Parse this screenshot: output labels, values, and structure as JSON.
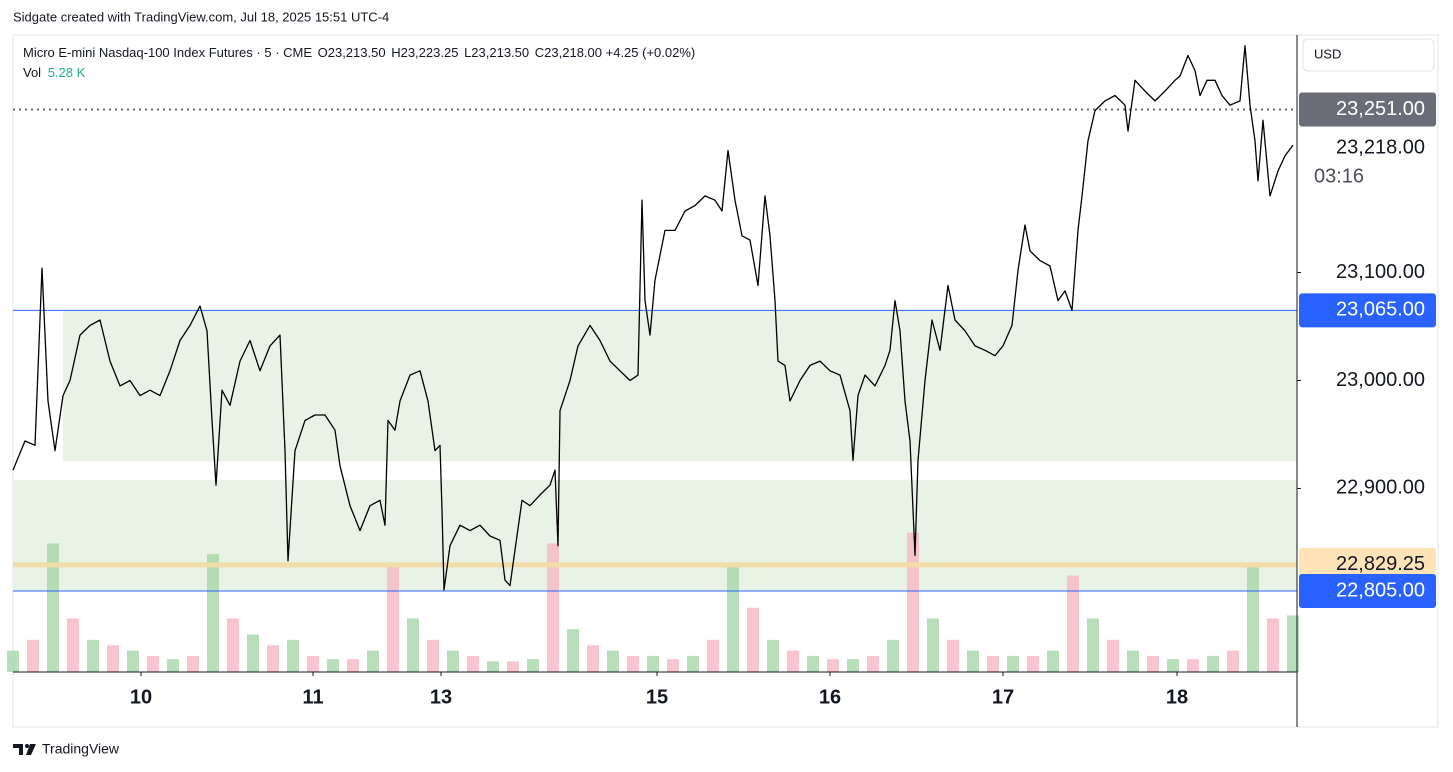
{
  "header": {
    "credit": "Sidgate created with TradingView.com, Jul 18, 2025 15:51 UTC-4"
  },
  "footer": {
    "brand": "TradingView"
  },
  "chart_data": {
    "type": "line",
    "currency": "USD",
    "ohlc": [
      {
        "key": "O",
        "value": "23,213.50"
      },
      {
        "key": "H",
        "value": "23,223.25"
      },
      {
        "key": "L",
        "value": "23,213.50"
      },
      {
        "key": "C",
        "value": "23,218.00"
      }
    ],
    "change": "+4.25 (+0.02%)",
    "xlim": [
      0,
      1284
    ],
    "ylim": [
      22730,
      23320
    ],
    "xticks": [
      {
        "value": 128,
        "label": "10"
      },
      {
        "value": 300,
        "label": "11"
      },
      {
        "value": 428,
        "label": "13"
      },
      {
        "value": 644,
        "label": "15"
      },
      {
        "value": 817,
        "label": "16"
      },
      {
        "value": 990,
        "label": "17"
      },
      {
        "value": 1164,
        "label": "18"
      }
    ],
    "yticks": [
      {
        "value": 22900,
        "label": "22,900.00"
      },
      {
        "value": 23000,
        "label": "23,000.00"
      },
      {
        "value": 23100,
        "label": "23,100.00"
      }
    ],
    "series": [
      {
        "name": "Micro E-mini Nasdaq-100 Index Futures · 5 · CME",
        "color": "#000000",
        "x": [
          0,
          12,
          22,
          29,
          35,
          42,
          50,
          57,
          67,
          77,
          87,
          97,
          107,
          117,
          127,
          137,
          147,
          157,
          167,
          177,
          187,
          194,
          199,
          203,
          209,
          217,
          227,
          237,
          247,
          257,
          267,
          272,
          275,
          282,
          292,
          302,
          312,
          322,
          327,
          337,
          347,
          357,
          367,
          372,
          375,
          382,
          387,
          397,
          407,
          415,
          422,
          427,
          429,
          431,
          437,
          447,
          457,
          467,
          477,
          487,
          492,
          497,
          502,
          509,
          517,
          527,
          537,
          542,
          545,
          547,
          557,
          565,
          577,
          587,
          597,
          607,
          617,
          625,
          629,
          632,
          637,
          642,
          652,
          662,
          672,
          682,
          692,
          702,
          709,
          715,
          722,
          729,
          737,
          745,
          752,
          757,
          762,
          765,
          772,
          777,
          787,
          797,
          807,
          817,
          827,
          837,
          840,
          845,
          852,
          862,
          872,
          877,
          882,
          887,
          892,
          897,
          902,
          905,
          912,
          919,
          927,
          935,
          942,
          952,
          962,
          972,
          982,
          990,
          999,
          1005,
          1012,
          1017,
          1027,
          1037,
          1045,
          1052,
          1059,
          1065,
          1069,
          1075,
          1082,
          1092,
          1102,
          1112,
          1115,
          1122,
          1132,
          1142,
          1152,
          1162,
          1167,
          1175,
          1182,
          1187,
          1194,
          1202,
          1209,
          1217,
          1227,
          1232,
          1237,
          1242,
          1245,
          1250,
          1257,
          1265,
          1272,
          1280
        ],
        "values": [
          22917,
          22944,
          22940,
          23104,
          22981,
          22935,
          22986,
          23000,
          23042,
          23051,
          23056,
          23018,
          22995,
          23000,
          22986,
          22991,
          22986,
          23009,
          23037,
          23051,
          23069,
          23046,
          22963,
          22903,
          22991,
          22977,
          23018,
          23037,
          23009,
          23032,
          23042,
          22935,
          22833,
          22935,
          22963,
          22968,
          22968,
          22954,
          22921,
          22884,
          22861,
          22884,
          22889,
          22866,
          22963,
          22954,
          22981,
          23005,
          23009,
          22981,
          22935,
          22940,
          22880,
          22806,
          22847,
          22866,
          22861,
          22866,
          22856,
          22852,
          22815,
          22810,
          22843,
          22889,
          22884,
          22894,
          22903,
          22917,
          22847,
          22972,
          23000,
          23032,
          23051,
          23037,
          23018,
          23009,
          23000,
          23005,
          23167,
          23074,
          23042,
          23093,
          23139,
          23139,
          23157,
          23162,
          23171,
          23167,
          23157,
          23213,
          23167,
          23134,
          23130,
          23088,
          23171,
          23134,
          23074,
          23018,
          23014,
          22981,
          23000,
          23014,
          23018,
          23009,
          23005,
          22972,
          22926,
          22986,
          23005,
          22995,
          23014,
          23028,
          23074,
          23046,
          22981,
          22944,
          22838,
          22926,
          23000,
          23056,
          23028,
          23088,
          23056,
          23046,
          23032,
          23028,
          23023,
          23032,
          23051,
          23102,
          23144,
          23120,
          23111,
          23106,
          23074,
          23083,
          23065,
          23139,
          23171,
          23222,
          23250,
          23259,
          23264,
          23255,
          23231,
          23278,
          23268,
          23259,
          23268,
          23278,
          23282,
          23301,
          23287,
          23264,
          23278,
          23278,
          23264,
          23255,
          23259,
          23310,
          23255,
          23222,
          23185,
          23241,
          23171,
          23194,
          23208,
          23218
        ]
      }
    ],
    "last_price": {
      "value": 23218,
      "label": "23,218.00",
      "countdown": "03:16"
    },
    "levels": [
      {
        "value": 23251,
        "label": "23,251.00",
        "color": "#6a6d78",
        "style": "dotted"
      },
      {
        "value": 23065,
        "label": "23,065.00",
        "color": "#2962ff",
        "style": "solid"
      },
      {
        "value": 22829.25,
        "label": "22,829.25",
        "color": "#f2dca8",
        "style": "thick"
      },
      {
        "value": 22805,
        "label": "22,805.00",
        "color": "#2962ff",
        "style": "solid"
      }
    ],
    "zones": [
      {
        "from": 22925,
        "to": 23065,
        "start": 50,
        "color": "#e8f3e6"
      },
      {
        "from": 22805,
        "to": 22908,
        "start": 0,
        "color": "#e8f3e6"
      }
    ],
    "volume": {
      "name": "Vol",
      "legend_value": "5.28 K",
      "ylim": [
        0,
        14
      ],
      "colors": [
        "#a5d6a7",
        "#f4b6c2"
      ],
      "x": [
        0,
        20,
        40,
        60,
        80,
        100,
        120,
        140,
        160,
        180,
        200,
        220,
        240,
        260,
        280,
        300,
        320,
        340,
        360,
        380,
        400,
        420,
        440,
        460,
        480,
        500,
        520,
        540,
        560,
        580,
        600,
        620,
        640,
        660,
        680,
        700,
        720,
        740,
        760,
        780,
        800,
        820,
        840,
        860,
        880,
        900,
        920,
        940,
        960,
        980,
        1000,
        1020,
        1040,
        1060,
        1080,
        1100,
        1120,
        1140,
        1160,
        1180,
        1200,
        1220,
        1240,
        1260,
        1280
      ],
      "values": [
        2,
        3,
        12,
        5,
        3,
        2.5,
        2,
        1.5,
        1.2,
        1.5,
        11,
        5,
        3.5,
        2.5,
        3,
        1.5,
        1.2,
        1.2,
        2,
        10,
        5,
        3,
        2,
        1.5,
        1,
        1,
        1.2,
        12,
        4,
        2.5,
        2,
        1.5,
        1.5,
        1.2,
        1.5,
        3,
        10,
        6,
        3,
        2,
        1.5,
        1.2,
        1.2,
        1.5,
        3,
        13,
        5,
        3,
        2,
        1.5,
        1.5,
        1.5,
        2,
        9,
        5,
        3,
        2,
        1.5,
        1.2,
        1.2,
        1.5,
        2,
        10,
        5,
        5.28
      ]
    }
  }
}
